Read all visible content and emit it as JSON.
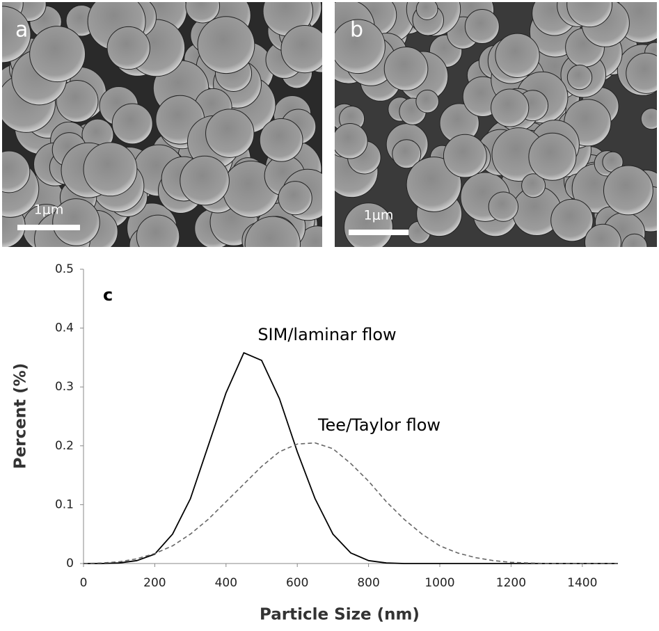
{
  "panels": [
    {
      "label": "a",
      "scale_bar": "1μm"
    },
    {
      "label": "b",
      "scale_bar": "1μm"
    }
  ],
  "chart_data": {
    "type": "line",
    "annotation": "c",
    "x_label": "Particle Size (nm)",
    "y_label": "Percent (%)",
    "x": [
      0,
      50,
      100,
      150,
      200,
      250,
      300,
      350,
      400,
      450,
      500,
      550,
      600,
      650,
      700,
      750,
      800,
      850,
      900,
      950,
      1000,
      1050,
      1100,
      1150,
      1200,
      1250,
      1300,
      1350,
      1400,
      1450,
      1500
    ],
    "series": [
      {
        "name": "SIM/laminar flow",
        "color": "#000000",
        "dash": false,
        "values": [
          0,
          0,
          0.001,
          0.005,
          0.016,
          0.05,
          0.11,
          0.2,
          0.29,
          0.358,
          0.345,
          0.28,
          0.19,
          0.11,
          0.05,
          0.018,
          0.005,
          0.001,
          0,
          0,
          0,
          0,
          0,
          0,
          0,
          0,
          0,
          0,
          0,
          0,
          0
        ]
      },
      {
        "name": "Tee/Taylor flow",
        "color": "#666666",
        "dash": true,
        "values": [
          0,
          0.001,
          0.003,
          0.008,
          0.017,
          0.03,
          0.05,
          0.075,
          0.105,
          0.135,
          0.165,
          0.19,
          0.203,
          0.205,
          0.195,
          0.17,
          0.14,
          0.105,
          0.075,
          0.05,
          0.03,
          0.018,
          0.01,
          0.005,
          0.002,
          0.001,
          0,
          0,
          0,
          0,
          0
        ]
      }
    ],
    "xlim": [
      0,
      1500
    ],
    "xticks": [
      0,
      200,
      400,
      600,
      800,
      1000,
      1200,
      1400
    ],
    "ylim": [
      0,
      0.5
    ],
    "yticks": [
      0,
      0.1,
      0.2,
      0.3,
      0.4,
      0.5
    ],
    "grid": false
  }
}
